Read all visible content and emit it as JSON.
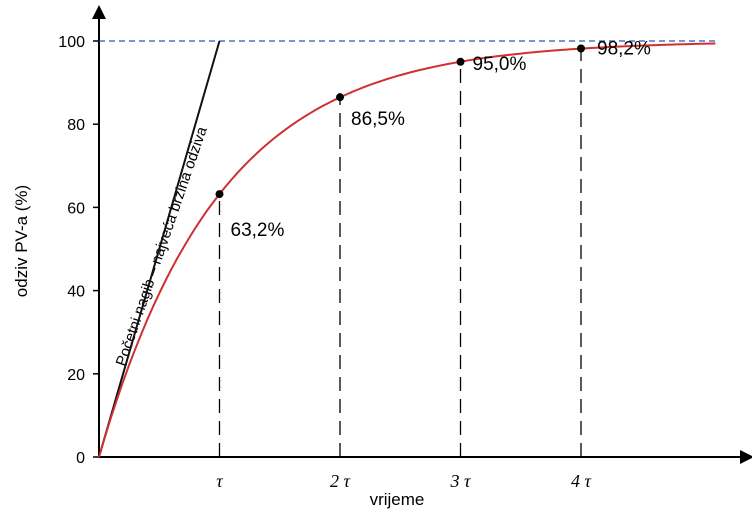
{
  "chart_data": {
    "type": "line",
    "xlabel": "vrijeme",
    "ylabel": "odziv PV-a (%)",
    "ylim": [
      0,
      100
    ],
    "xlim": [
      0,
      5
    ],
    "y_ticks": [
      "0",
      "20",
      "40",
      "60",
      "80",
      "100"
    ],
    "x_ticks": [
      "τ",
      "2 τ",
      "3 τ",
      "4 τ"
    ],
    "series": [
      {
        "values_description": "first-order step response",
        "x": [
          0,
          0.25,
          0.5,
          0.75,
          1,
          1.25,
          1.5,
          1.75,
          2,
          2.25,
          2.5,
          2.75,
          3,
          3.25,
          3.5,
          3.75,
          4,
          4.5,
          5
        ],
        "y": [
          0,
          22.1,
          39.3,
          52.8,
          63.2,
          71.3,
          77.7,
          82.6,
          86.5,
          89.5,
          91.8,
          93.6,
          95.0,
          96.1,
          97.0,
          97.6,
          98.2,
          98.9,
          99.3
        ],
        "color": "#d03030"
      }
    ],
    "points": [
      {
        "x": 1,
        "y": 63.2,
        "label": "63,2%"
      },
      {
        "x": 2,
        "y": 86.5,
        "label": "86,5%"
      },
      {
        "x": 3,
        "y": 95.0,
        "label": "95,0%"
      },
      {
        "x": 4,
        "y": 98.2,
        "label": "98,2%"
      }
    ],
    "tangent": {
      "from": [
        0,
        0
      ],
      "to": [
        1,
        100
      ],
      "label": "Početni nagib – najveća brzina odziva"
    },
    "reference_line": {
      "y": 100,
      "color": "#3050c0"
    }
  }
}
